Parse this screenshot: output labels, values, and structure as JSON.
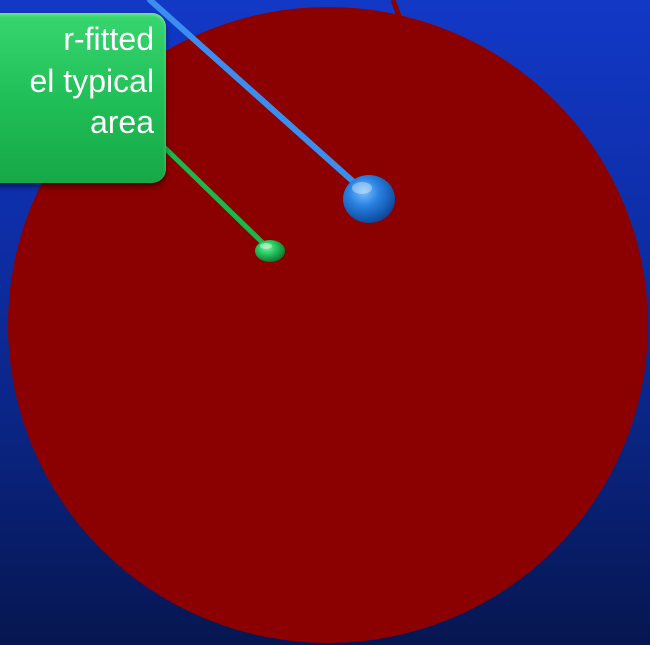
{
  "callout": {
    "lines": [
      "r-fitted",
      "el typical",
      "area"
    ]
  },
  "colors": {
    "background_top": "#1238c6",
    "background_bottom": "#061650",
    "disc": "#8b0000",
    "callout_fill": "#22c35a",
    "green_leader": "#19b84a",
    "blue_leader": "#3b8ef0",
    "blue_marker": "#1f78d8",
    "green_marker": "#1fbd55"
  },
  "icons": {
    "large_marker": "blue-sphere-icon",
    "small_marker": "green-sphere-icon"
  }
}
